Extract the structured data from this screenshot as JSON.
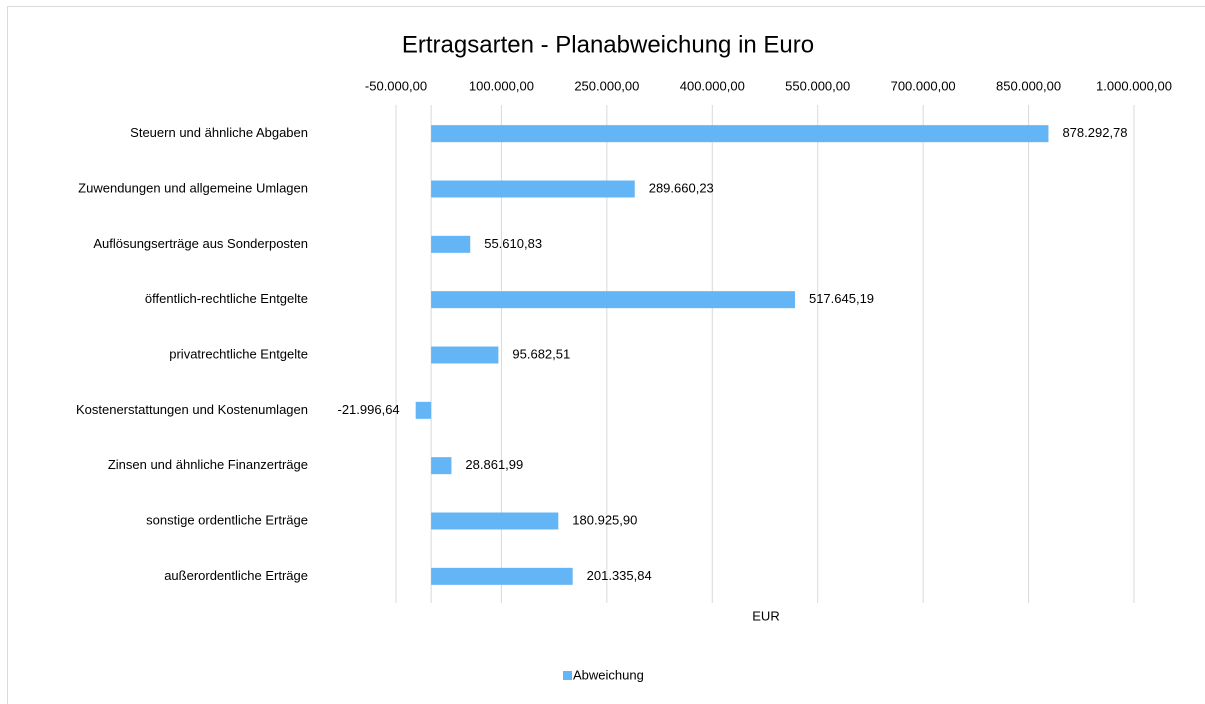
{
  "chart_data": {
    "type": "bar",
    "orientation": "horizontal",
    "title": "Ertragsarten - Planabweichung in Euro",
    "x_axis_label": "EUR",
    "categories": [
      "Steuern und ähnliche Abgaben",
      "Zuwendungen und allgemeine Umlagen",
      "Auflösungserträge aus Sonderposten",
      "öffentlich-rechtliche Entgelte",
      "privatrechtliche Entgelte",
      "Kostenerstattungen und Kostenumlagen",
      "Zinsen und ähnliche Finanzerträge",
      "sonstige ordentliche Erträge",
      "außerordentliche Erträge"
    ],
    "series": [
      {
        "name": "Abweichung",
        "color": "#64b5f6",
        "values": [
          878292.78,
          289660.23,
          55610.83,
          517645.19,
          95682.51,
          -21996.64,
          28861.99,
          180925.9,
          201335.84
        ],
        "value_labels": [
          "878.292,78",
          "289.660,23",
          "55.610,83",
          "517.645,19",
          "95.682,51",
          "-21.996,64",
          "28.861,99",
          "180.925,90",
          "201.335,84"
        ]
      }
    ],
    "xlim": [
      -50000,
      1000000
    ],
    "xticks": [
      {
        "value": -50000,
        "label": "-50.000,00"
      },
      {
        "value": 100000,
        "label": "100.000,00"
      },
      {
        "value": 250000,
        "label": "250.000,00"
      },
      {
        "value": 400000,
        "label": "400.000,00"
      },
      {
        "value": 550000,
        "label": "550.000,00"
      },
      {
        "value": 700000,
        "label": "700.000,00"
      },
      {
        "value": 850000,
        "label": "850.000,00"
      },
      {
        "value": 1000000,
        "label": "1.000.000,00"
      }
    ],
    "grid": true,
    "legend": "bottom"
  }
}
